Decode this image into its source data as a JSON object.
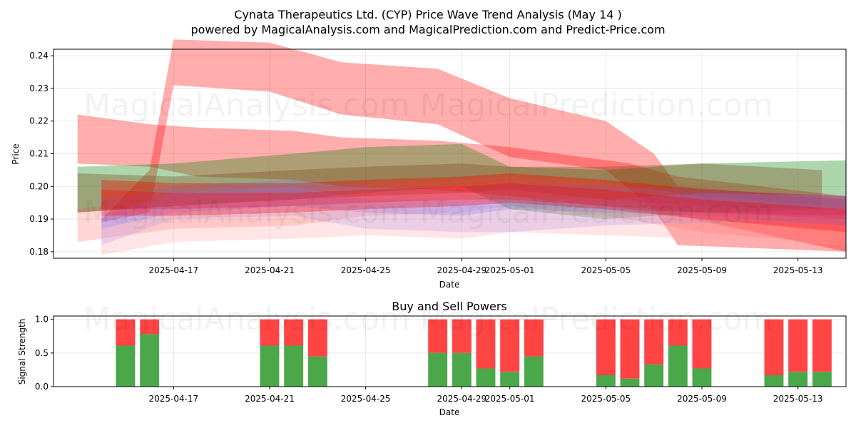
{
  "figure": {
    "title_line1": "Cynata Therapeutics Ltd. (CYP) Price Wave Trend Analysis (May 14 )",
    "title_line2": "powered by MagicalAnalysis.com and MagicalPrediction.com and Predict-Price.com",
    "watermarks": [
      "MagicalAnalysis.com",
      "MagicalPrediction.com"
    ]
  },
  "chart_data": [
    {
      "type": "area",
      "title": "",
      "xlabel": "Date",
      "ylabel": "Price",
      "x_start": "2025-04-13",
      "xlim": [
        "2025-04-12",
        "2025-05-15"
      ],
      "ylim": [
        0.178,
        0.242
      ],
      "x_ticks": [
        "2025-04-17",
        "2025-04-21",
        "2025-04-25",
        "2025-04-29",
        "2025-05-01",
        "2025-05-05",
        "2025-05-09",
        "2025-05-13"
      ],
      "y_ticks": [
        0.18,
        0.19,
        0.2,
        0.21,
        0.22,
        0.23,
        0.24
      ],
      "y_tick_labels": [
        "0.18",
        "0.19",
        "0.20",
        "0.21",
        "0.22",
        "0.23",
        "0.24"
      ],
      "grid": true,
      "series": [
        {
          "color": "#ff0000",
          "opacity": 0.32,
          "x": [
            "2025-04-13",
            "2025-04-16",
            "2025-04-18",
            "2025-04-22",
            "2025-04-24",
            "2025-04-28",
            "2025-05-01",
            "2025-05-06",
            "2025-05-08",
            "2025-05-15"
          ],
          "upper": [
            0.222,
            0.219,
            0.218,
            0.217,
            0.215,
            0.214,
            0.212,
            0.207,
            0.203,
            0.197
          ],
          "lower": [
            0.207,
            0.206,
            0.203,
            0.202,
            0.2,
            0.199,
            0.197,
            0.193,
            0.191,
            0.18
          ]
        },
        {
          "color": "#ff0000",
          "opacity": 0.32,
          "x": [
            "2025-04-14",
            "2025-04-16",
            "2025-04-17",
            "2025-04-21",
            "2025-04-24",
            "2025-04-28",
            "2025-05-01",
            "2025-05-05",
            "2025-05-07",
            "2025-05-08",
            "2025-05-15"
          ],
          "upper": [
            0.19,
            0.205,
            0.245,
            0.244,
            0.238,
            0.236,
            0.227,
            0.22,
            0.21,
            0.2,
            0.196
          ],
          "lower": [
            0.189,
            0.192,
            0.231,
            0.229,
            0.222,
            0.219,
            0.209,
            0.205,
            0.193,
            0.182,
            0.18
          ]
        },
        {
          "color": "#008000",
          "opacity": 0.32,
          "x": [
            "2025-04-13",
            "2025-04-17",
            "2025-04-22",
            "2025-04-25",
            "2025-04-29",
            "2025-05-01",
            "2025-05-05",
            "2025-05-09",
            "2025-05-15"
          ],
          "upper": [
            0.206,
            0.207,
            0.21,
            0.212,
            0.213,
            0.206,
            0.205,
            0.207,
            0.208
          ],
          "lower": [
            0.192,
            0.194,
            0.196,
            0.198,
            0.2,
            0.193,
            0.19,
            0.192,
            0.193
          ]
        },
        {
          "color": "#7b4a1a",
          "opacity": 0.35,
          "x": [
            "2025-04-13",
            "2025-04-17",
            "2025-04-22",
            "2025-04-25",
            "2025-04-29",
            "2025-05-01",
            "2025-05-05",
            "2025-05-09",
            "2025-05-14"
          ],
          "upper": [
            0.204,
            0.203,
            0.205,
            0.206,
            0.207,
            0.206,
            0.206,
            0.207,
            0.205
          ],
          "lower": [
            0.192,
            0.194,
            0.196,
            0.197,
            0.198,
            0.199,
            0.196,
            0.194,
            0.193
          ]
        },
        {
          "color": "#ff0000",
          "opacity": 0.35,
          "x": [
            "2025-04-14",
            "2025-04-17",
            "2025-04-22",
            "2025-04-25",
            "2025-04-29",
            "2025-05-01",
            "2025-05-05",
            "2025-05-09",
            "2025-05-15"
          ],
          "upper": [
            0.202,
            0.201,
            0.201,
            0.202,
            0.203,
            0.204,
            0.202,
            0.199,
            0.197
          ],
          "lower": [
            0.193,
            0.193,
            0.194,
            0.195,
            0.196,
            0.196,
            0.194,
            0.192,
            0.191
          ]
        },
        {
          "color": "#ff4444",
          "opacity": 0.22,
          "x": [
            "2025-04-13",
            "2025-04-17",
            "2025-04-22",
            "2025-04-25",
            "2025-04-29",
            "2025-05-01",
            "2025-05-05",
            "2025-05-09",
            "2025-05-15"
          ],
          "upper": [
            0.193,
            0.197,
            0.199,
            0.201,
            0.202,
            0.203,
            0.201,
            0.197,
            0.194
          ],
          "lower": [
            0.183,
            0.187,
            0.188,
            0.191,
            0.192,
            0.194,
            0.191,
            0.186,
            0.182
          ]
        },
        {
          "color": "#8a80ff",
          "opacity": 0.25,
          "x": [
            "2025-04-14",
            "2025-04-17",
            "2025-04-22",
            "2025-04-25",
            "2025-04-29",
            "2025-05-01",
            "2025-05-05",
            "2025-05-09",
            "2025-05-15"
          ],
          "upper": [
            0.191,
            0.198,
            0.2,
            0.196,
            0.196,
            0.197,
            0.196,
            0.198,
            0.197
          ],
          "lower": [
            0.182,
            0.19,
            0.191,
            0.187,
            0.186,
            0.186,
            0.188,
            0.189,
            0.188
          ]
        },
        {
          "color": "#ffaaaa",
          "opacity": 0.3,
          "x": [
            "2025-04-14",
            "2025-04-17",
            "2025-04-22",
            "2025-04-25",
            "2025-04-29",
            "2025-05-01",
            "2025-05-05",
            "2025-05-09",
            "2025-05-15"
          ],
          "upper": [
            0.188,
            0.192,
            0.193,
            0.194,
            0.192,
            0.194,
            0.193,
            0.192,
            0.19
          ],
          "lower": [
            0.179,
            0.183,
            0.184,
            0.185,
            0.184,
            0.186,
            0.185,
            0.184,
            0.182
          ]
        },
        {
          "color": "#6060ff",
          "opacity": 0.18,
          "x": [
            "2025-04-14",
            "2025-04-17",
            "2025-04-22",
            "2025-04-25",
            "2025-04-29",
            "2025-05-01",
            "2025-05-05",
            "2025-05-09",
            "2025-05-15"
          ],
          "upper": [
            0.196,
            0.2,
            0.202,
            0.2,
            0.199,
            0.201,
            0.2,
            0.199,
            0.197
          ],
          "lower": [
            0.187,
            0.192,
            0.194,
            0.192,
            0.191,
            0.193,
            0.192,
            0.191,
            0.188
          ]
        },
        {
          "color": "#ff0000",
          "opacity": 0.3,
          "x": [
            "2025-04-14",
            "2025-04-17",
            "2025-04-22",
            "2025-04-25",
            "2025-04-29",
            "2025-05-01",
            "2025-05-05",
            "2025-05-09",
            "2025-05-15"
          ],
          "upper": [
            0.199,
            0.198,
            0.198,
            0.199,
            0.2,
            0.201,
            0.199,
            0.196,
            0.193
          ],
          "lower": [
            0.191,
            0.191,
            0.192,
            0.193,
            0.194,
            0.195,
            0.193,
            0.19,
            0.186
          ]
        }
      ]
    },
    {
      "type": "bar",
      "title": "Buy and Sell Powers",
      "xlabel": "Date",
      "ylabel": "Signal Strength",
      "xlim": [
        "2025-04-12",
        "2025-05-15"
      ],
      "ylim": [
        0,
        1.05
      ],
      "x_ticks": [
        "2025-04-17",
        "2025-04-21",
        "2025-04-25",
        "2025-04-29",
        "2025-05-01",
        "2025-05-05",
        "2025-05-09",
        "2025-05-13"
      ],
      "y_ticks": [
        0,
        0.5,
        1.0
      ],
      "y_tick_labels": [
        "0.0",
        "0.5",
        "1.0"
      ],
      "grid": true,
      "categories": [
        "2025-04-15",
        "2025-04-16",
        "2025-04-21",
        "2025-04-22",
        "2025-04-23",
        "2025-04-28",
        "2025-04-29",
        "2025-04-30",
        "2025-05-01",
        "2025-05-02",
        "2025-05-05",
        "2025-05-06",
        "2025-05-07",
        "2025-05-08",
        "2025-05-09",
        "2025-05-12",
        "2025-05-13",
        "2025-05-14"
      ],
      "series": [
        {
          "name": "Buy",
          "color": "#4aa84a",
          "values": [
            0.61,
            0.78,
            0.61,
            0.61,
            0.45,
            0.5,
            0.5,
            0.27,
            0.22,
            0.45,
            0.17,
            0.12,
            0.33,
            0.61,
            0.27,
            0.17,
            0.22,
            0.22
          ]
        },
        {
          "name": "Sell",
          "color": "#ff4444",
          "values": [
            0.39,
            0.22,
            0.39,
            0.39,
            0.55,
            0.5,
            0.5,
            0.73,
            0.78,
            0.55,
            0.83,
            0.88,
            0.67,
            0.39,
            0.73,
            0.83,
            0.78,
            0.78
          ]
        }
      ]
    }
  ]
}
